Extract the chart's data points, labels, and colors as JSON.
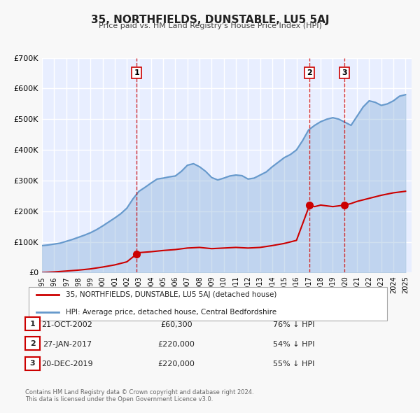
{
  "title": "35, NORTHFIELDS, DUNSTABLE, LU5 5AJ",
  "subtitle": "Price paid vs. HM Land Registry's House Price Index (HPI)",
  "background_color": "#f0f4ff",
  "plot_bg_color": "#e8eeff",
  "grid_color": "#ffffff",
  "ylim": [
    0,
    700000
  ],
  "yticks": [
    0,
    100000,
    200000,
    300000,
    400000,
    500000,
    600000,
    700000
  ],
  "ytick_labels": [
    "£0",
    "£100K",
    "£200K",
    "£300K",
    "£400K",
    "£500K",
    "£600K",
    "£700K"
  ],
  "xlim_start": 1995.0,
  "xlim_end": 2025.5,
  "sale_color": "#cc0000",
  "hpi_color": "#6699cc",
  "sale_marker_color": "#cc0000",
  "transaction_dates": [
    2002.81,
    2017.08,
    2019.97
  ],
  "transaction_prices": [
    60300,
    220000,
    220000
  ],
  "transaction_labels": [
    "1",
    "2",
    "3"
  ],
  "vline_dates": [
    2002.81,
    2017.08,
    2019.97
  ],
  "legend_sale_label": "35, NORTHFIELDS, DUNSTABLE, LU5 5AJ (detached house)",
  "legend_hpi_label": "HPI: Average price, detached house, Central Bedfordshire",
  "table_rows": [
    {
      "num": "1",
      "date": "21-OCT-2002",
      "price": "£60,300",
      "hpi": "76% ↓ HPI"
    },
    {
      "num": "2",
      "date": "27-JAN-2017",
      "price": "£220,000",
      "hpi": "54% ↓ HPI"
    },
    {
      "num": "3",
      "date": "20-DEC-2019",
      "price": "£220,000",
      "hpi": "55% ↓ HPI"
    }
  ],
  "footer": "Contains HM Land Registry data © Crown copyright and database right 2024.\nThis data is licensed under the Open Government Licence v3.0.",
  "hpi_x": [
    1995.0,
    1995.5,
    1996.0,
    1996.5,
    1997.0,
    1997.5,
    1998.0,
    1998.5,
    1999.0,
    1999.5,
    2000.0,
    2000.5,
    2001.0,
    2001.5,
    2002.0,
    2002.5,
    2003.0,
    2003.5,
    2004.0,
    2004.5,
    2005.0,
    2005.5,
    2006.0,
    2006.5,
    2007.0,
    2007.5,
    2008.0,
    2008.5,
    2009.0,
    2009.5,
    2010.0,
    2010.5,
    2011.0,
    2011.5,
    2012.0,
    2012.5,
    2013.0,
    2013.5,
    2014.0,
    2014.5,
    2015.0,
    2015.5,
    2016.0,
    2016.5,
    2017.0,
    2017.5,
    2018.0,
    2018.5,
    2019.0,
    2019.5,
    2020.0,
    2020.5,
    2021.0,
    2021.5,
    2022.0,
    2022.5,
    2023.0,
    2023.5,
    2024.0,
    2024.5,
    2025.0
  ],
  "hpi_y": [
    88000,
    90000,
    93000,
    96000,
    102000,
    108000,
    115000,
    122000,
    130000,
    140000,
    152000,
    165000,
    178000,
    192000,
    210000,
    240000,
    265000,
    278000,
    292000,
    305000,
    308000,
    312000,
    315000,
    330000,
    350000,
    355000,
    345000,
    330000,
    310000,
    302000,
    308000,
    315000,
    318000,
    316000,
    305000,
    308000,
    318000,
    328000,
    345000,
    360000,
    375000,
    385000,
    400000,
    430000,
    465000,
    480000,
    492000,
    500000,
    505000,
    500000,
    490000,
    480000,
    510000,
    540000,
    560000,
    555000,
    545000,
    550000,
    560000,
    575000,
    580000
  ],
  "sale_x": [
    1995.0,
    1996.0,
    1997.0,
    1998.0,
    1999.0,
    2000.0,
    2001.0,
    2002.0,
    2002.81,
    2003.0,
    2004.0,
    2005.0,
    2006.0,
    2007.0,
    2008.0,
    2009.0,
    2010.0,
    2011.0,
    2012.0,
    2013.0,
    2014.0,
    2015.0,
    2016.0,
    2017.08,
    2017.5,
    2018.0,
    2019.0,
    2019.97,
    2020.5,
    2021.0,
    2022.0,
    2023.0,
    2024.0,
    2025.0
  ],
  "sale_y": [
    0,
    2000,
    5000,
    8000,
    12000,
    18000,
    25000,
    35000,
    60300,
    65000,
    68000,
    72000,
    75000,
    80000,
    82000,
    78000,
    80000,
    82000,
    80000,
    82000,
    88000,
    95000,
    105000,
    220000,
    215000,
    220000,
    215000,
    220000,
    225000,
    232000,
    242000,
    252000,
    260000,
    265000
  ]
}
